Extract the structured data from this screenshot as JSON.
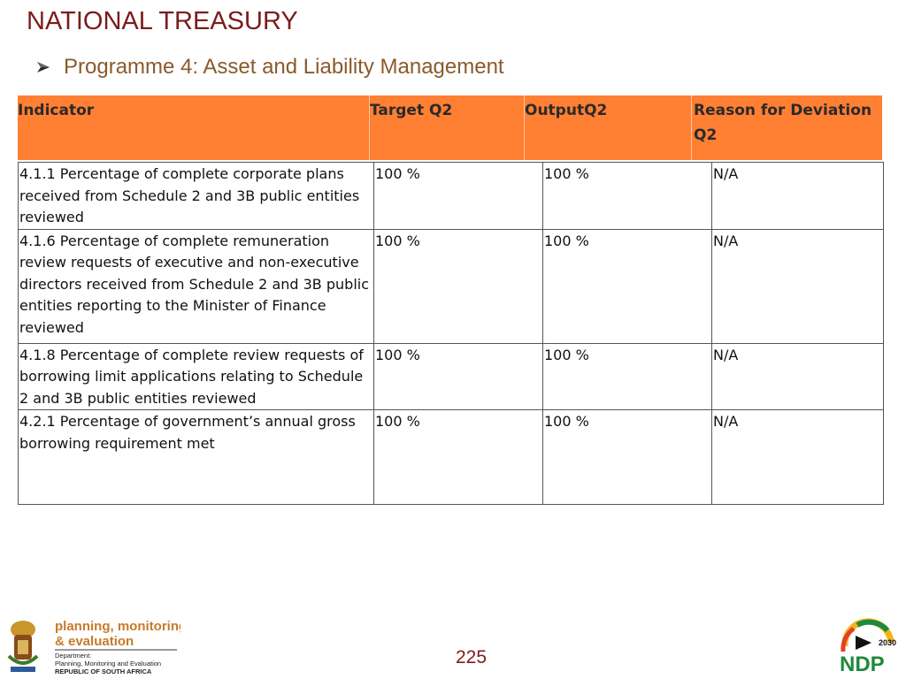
{
  "header": {
    "title": "NATIONAL TREASURY",
    "subtitle": "Programme 4: Asset and Liability Management"
  },
  "table": {
    "columns": [
      "Indicator",
      "Target Q2",
      "OutputQ2",
      "Reason for Deviation Q2"
    ],
    "rows": [
      [
        "4.1.1 Percentage of complete corporate plans received from Schedule 2 and 3B public entities reviewed",
        "100 %",
        "100 %",
        "N/A"
      ],
      [
        "4.1.6 Percentage of complete remuneration review requests of executive and non-executive directors received from Schedule 2 and 3B public entities reporting to the Minister of Finance reviewed",
        "100 %",
        "100 %",
        "N/A"
      ],
      [
        "4.1.8 Percentage of complete review requests of borrowing limit applications relating to Schedule 2 and 3B public entities reviewed",
        "100 %",
        "100 %",
        "N/A"
      ],
      [
        "4.2.1 Percentage of government’s annual gross borrowing requirement met",
        "100 %",
        "100 %",
        "N/A"
      ]
    ]
  },
  "footer": {
    "logo_line1": "planning, monitoring",
    "logo_line2": "& evaluation",
    "dept_line1": "Department:",
    "dept_line2": "Planning, Monitoring and Evaluation",
    "dept_line3": "REPUBLIC OF SOUTH AFRICA",
    "page_number": "225",
    "ndp_text": "NDP",
    "ndp_year": "2030"
  },
  "colors": {
    "title": "#7b1c1c",
    "subtitle": "#8a5a2b",
    "header_fill": "#ff7f33"
  }
}
